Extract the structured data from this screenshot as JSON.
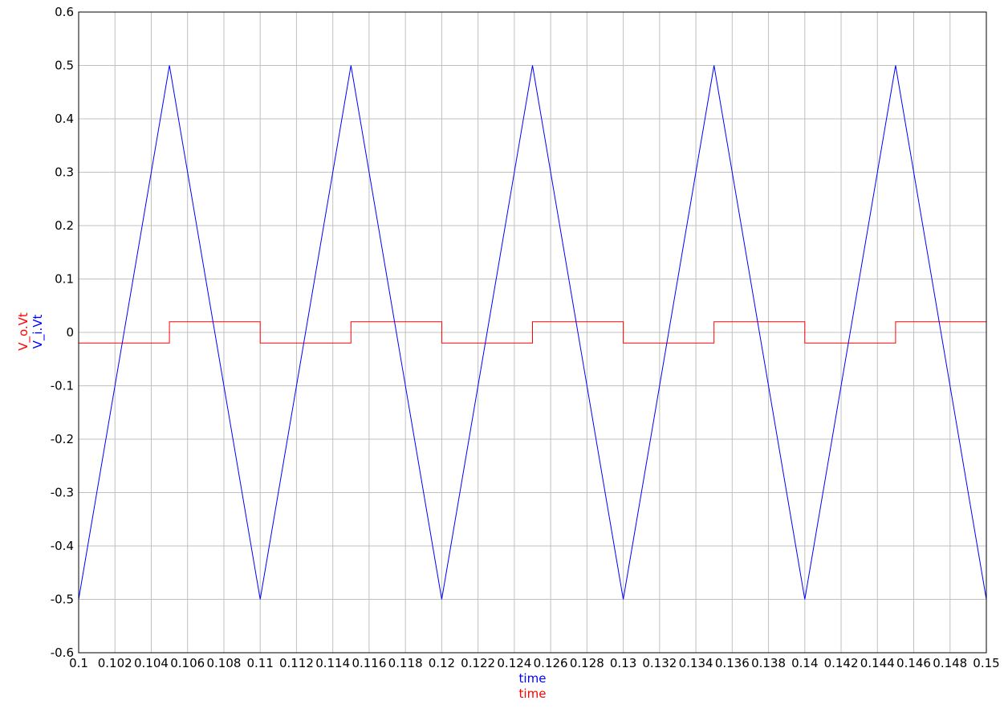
{
  "chart_data": {
    "type": "line",
    "title": "",
    "grid": true,
    "xlabels": [
      {
        "text": "time",
        "color": "#0000ff"
      },
      {
        "text": "time",
        "color": "#ff0000"
      }
    ],
    "ylabels": [
      {
        "text": "V_o.Vt",
        "color": "#ff0000"
      },
      {
        "text": "V_i.Vt",
        "color": "#0000ff"
      }
    ],
    "xlim": [
      0.1,
      0.15
    ],
    "ylim": [
      -0.6,
      0.6
    ],
    "x_ticks": [
      0.1,
      0.102,
      0.104,
      0.106,
      0.108,
      0.11,
      0.112,
      0.114,
      0.116,
      0.118,
      0.12,
      0.122,
      0.124,
      0.126,
      0.128,
      0.13,
      0.132,
      0.134,
      0.136,
      0.138,
      0.14,
      0.142,
      0.144,
      0.146,
      0.148,
      0.15
    ],
    "x_tick_labels": [
      "0.1",
      "0.102",
      "0.104",
      "0.106",
      "0.108",
      "0.11",
      "0.112",
      "0.114",
      "0.116",
      "0.118",
      "0.12",
      "0.122",
      "0.124",
      "0.126",
      "0.128",
      "0.13",
      "0.132",
      "0.134",
      "0.136",
      "0.138",
      "0.14",
      "0.142",
      "0.144",
      "0.146",
      "0.148",
      "0.15"
    ],
    "y_ticks": [
      -0.6,
      -0.5,
      -0.4,
      -0.3,
      -0.2,
      -0.1,
      0,
      0.1,
      0.2,
      0.3,
      0.4,
      0.5,
      0.6
    ],
    "y_tick_labels": [
      "-0.6",
      "-0.5",
      "-0.4",
      "-0.3",
      "-0.2",
      "-0.1",
      "0",
      "0.1",
      "0.2",
      "0.3",
      "0.4",
      "0.5",
      "0.6"
    ],
    "series": [
      {
        "color": "#ff0000",
        "x": [
          0.1,
          0.1,
          0.105,
          0.105,
          0.11,
          0.11,
          0.115,
          0.115,
          0.12,
          0.12,
          0.125,
          0.125,
          0.13,
          0.13,
          0.135,
          0.135,
          0.14,
          0.14,
          0.145,
          0.145,
          0.15
        ],
        "y": [
          0.02,
          -0.02,
          -0.02,
          0.02,
          0.02,
          -0.02,
          -0.02,
          0.02,
          0.02,
          -0.02,
          -0.02,
          0.02,
          0.02,
          -0.02,
          -0.02,
          0.02,
          0.02,
          -0.02,
          -0.02,
          0.02,
          0.02
        ]
      },
      {
        "color": "#0000ff",
        "x": [
          0.1,
          0.105,
          0.11,
          0.115,
          0.12,
          0.125,
          0.13,
          0.135,
          0.14,
          0.145,
          0.15
        ],
        "y": [
          -0.5,
          0.5,
          -0.5,
          0.5,
          -0.5,
          0.5,
          -0.5,
          0.5,
          -0.5,
          0.5,
          -0.5
        ]
      }
    ]
  }
}
